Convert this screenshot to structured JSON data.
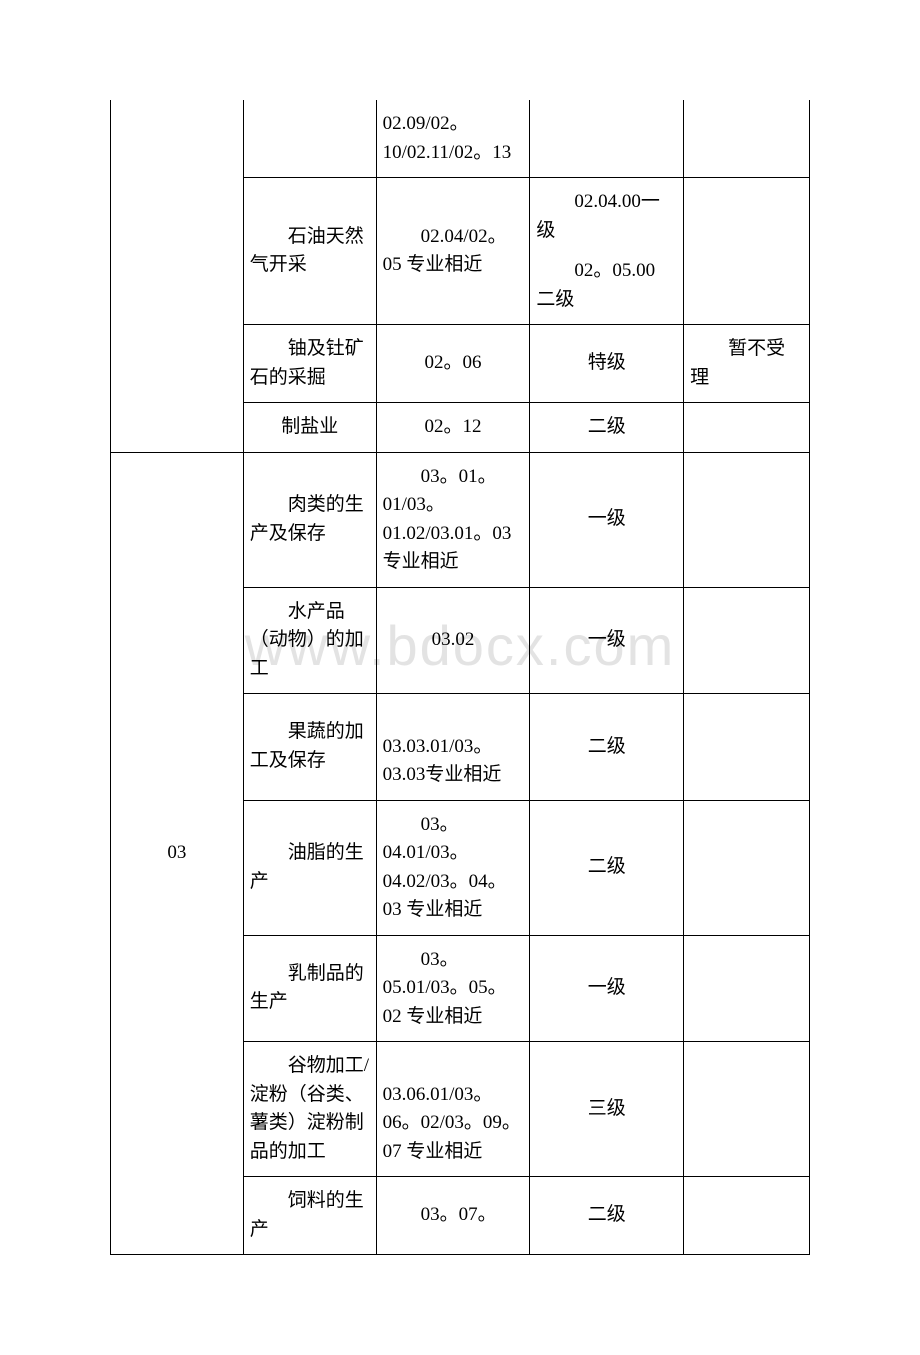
{
  "watermark": "www.bdocx.com",
  "table": {
    "columns": [
      "col1",
      "col2",
      "col3",
      "col4",
      "col5"
    ],
    "column_widths": [
      "19%",
      "19%",
      "22%",
      "22%",
      "18%"
    ],
    "rows": [
      {
        "cells": [
          {
            "text": "",
            "rowspan": 4,
            "no_top": true
          },
          {
            "text": "",
            "no_top": true
          },
          {
            "text": "02.09/02。10/02.11/02。13",
            "no_top": true,
            "align": "left"
          },
          {
            "text": "",
            "no_top": true
          },
          {
            "text": "",
            "no_top": true
          }
        ]
      },
      {
        "cells": [
          {
            "text": "　　石油天然气开采",
            "indent": true
          },
          {
            "text": "　　02.04/02。05 专业相近",
            "indent": true
          },
          {
            "text": "　　02.04.00一级\n　　02。05.00 二级",
            "indent": true
          },
          {
            "text": ""
          }
        ]
      },
      {
        "cells": [
          {
            "text": "　　铀及钍矿石的采掘",
            "indent": true
          },
          {
            "text": "02。06",
            "center": true
          },
          {
            "text": "特级",
            "center": true
          },
          {
            "text": "　　暂不受理",
            "indent": true
          }
        ]
      },
      {
        "cells": [
          {
            "text": "制盐业",
            "center": true
          },
          {
            "text": "02。12",
            "center": true
          },
          {
            "text": "二级",
            "center": true
          },
          {
            "text": ""
          }
        ]
      },
      {
        "cells": [
          {
            "text": "03",
            "rowspan": 7,
            "center": true
          },
          {
            "text": "　　肉类的生产及保存",
            "indent": true
          },
          {
            "text": "　　03。01。01/03。01.02/03.01。03 专业相近",
            "indent": true
          },
          {
            "text": "一级",
            "center": true
          },
          {
            "text": ""
          }
        ]
      },
      {
        "cells": [
          {
            "text": "　　水产品（动物）的加工",
            "indent": true
          },
          {
            "text": "03.02",
            "center": true
          },
          {
            "text": "一级",
            "center": true
          },
          {
            "text": ""
          }
        ]
      },
      {
        "cells": [
          {
            "text": "　　果蔬的加工及保存",
            "indent": true
          },
          {
            "text": "　　03.03.01/03。03.03专业相近",
            "indent": true
          },
          {
            "text": "二级",
            "center": true
          },
          {
            "text": ""
          }
        ]
      },
      {
        "cells": [
          {
            "text": "　　油脂的生产",
            "indent": true
          },
          {
            "text": "　　03。04.01/03。04.02/03。04。03 专业相近",
            "indent": true
          },
          {
            "text": "二级",
            "center": true
          },
          {
            "text": ""
          }
        ]
      },
      {
        "cells": [
          {
            "text": "　　乳制品的生产",
            "indent": true
          },
          {
            "text": "　　03。05.01/03。05。02 专业相近",
            "indent": true
          },
          {
            "text": "一级",
            "center": true
          },
          {
            "text": ""
          }
        ]
      },
      {
        "cells": [
          {
            "text": "　　谷物加工/淀粉（谷类、薯类）淀粉制品的加工",
            "indent": true
          },
          {
            "text": "　　03.06.01/03。06。02/03。09。07 专业相近",
            "indent": true
          },
          {
            "text": "三级",
            "center": true
          },
          {
            "text": ""
          }
        ]
      },
      {
        "cells": [
          {
            "text": "　　饲料的生产",
            "indent": true
          },
          {
            "text": "　　03。07。",
            "indent": true
          },
          {
            "text": "二级",
            "center": true
          },
          {
            "text": ""
          }
        ]
      }
    ]
  }
}
